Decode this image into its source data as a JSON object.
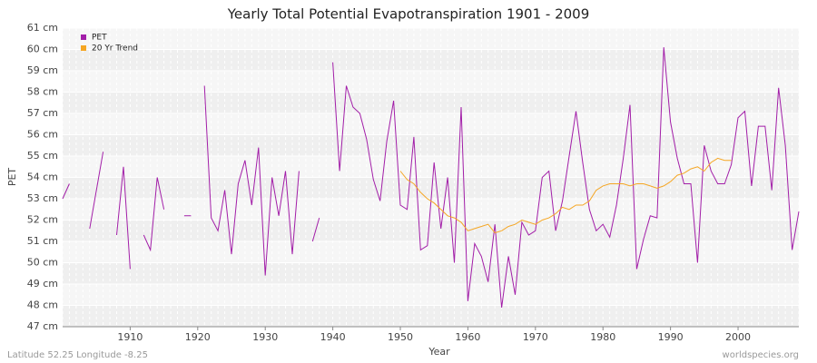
{
  "chart_data": {
    "type": "line",
    "title": "Yearly Total Potential Evapotranspiration 1901 - 2009",
    "x_label": "Year",
    "y_label": "PET",
    "footer_left": "Latitude 52.25 Longitude -8.25",
    "footer_right": "worldspecies.org",
    "legend": "upper left",
    "grid": true,
    "xlim": [
      1900,
      2009
    ],
    "xticks": [
      1910,
      1920,
      1930,
      1940,
      1950,
      1960,
      1970,
      1980,
      1990,
      2000
    ],
    "ylim": [
      47,
      61
    ],
    "yticks": [
      {
        "value": 47,
        "label": "47 cm"
      },
      {
        "value": 48,
        "label": "48 cm"
      },
      {
        "value": 49,
        "label": "49 cm"
      },
      {
        "value": 50,
        "label": "50 cm"
      },
      {
        "value": 51,
        "label": "51 cm"
      },
      {
        "value": 52,
        "label": "52 cm"
      },
      {
        "value": 53,
        "label": "53 cm"
      },
      {
        "value": 54,
        "label": "54 cm"
      },
      {
        "value": 55,
        "label": "55 cm"
      },
      {
        "value": 56,
        "label": "56 cm"
      },
      {
        "value": 57,
        "label": "57 cm"
      },
      {
        "value": 58,
        "label": "58 cm"
      },
      {
        "value": 59,
        "label": "59 cm"
      },
      {
        "value": 60,
        "label": "60 cm"
      },
      {
        "value": 61,
        "label": "61 cm"
      }
    ],
    "x": [
      1900,
      1901,
      1902,
      1903,
      1904,
      1905,
      1906,
      1907,
      1908,
      1909,
      1910,
      1911,
      1912,
      1913,
      1914,
      1915,
      1916,
      1917,
      1918,
      1919,
      1920,
      1921,
      1922,
      1923,
      1924,
      1925,
      1926,
      1927,
      1928,
      1929,
      1930,
      1931,
      1932,
      1933,
      1934,
      1935,
      1936,
      1937,
      1938,
      1939,
      1940,
      1941,
      1942,
      1943,
      1944,
      1945,
      1946,
      1947,
      1948,
      1949,
      1950,
      1951,
      1952,
      1953,
      1954,
      1955,
      1956,
      1957,
      1958,
      1959,
      1960,
      1961,
      1962,
      1963,
      1964,
      1965,
      1966,
      1967,
      1968,
      1969,
      1970,
      1971,
      1972,
      1973,
      1974,
      1975,
      1976,
      1977,
      1978,
      1979,
      1980,
      1981,
      1982,
      1983,
      1984,
      1985,
      1986,
      1987,
      1988,
      1989,
      1990,
      1991,
      1992,
      1993,
      1994,
      1995,
      1996,
      1997,
      1998,
      1999,
      2000,
      2001,
      2002,
      2003,
      2004,
      2005,
      2006,
      2007,
      2008,
      2009
    ],
    "series": [
      {
        "name": "PET",
        "color": "#a21ea8",
        "values": [
          53.0,
          53.7,
          null,
          null,
          51.6,
          53.4,
          55.2,
          null,
          51.3,
          54.5,
          49.7,
          null,
          51.3,
          50.6,
          54.0,
          52.5,
          null,
          null,
          52.2,
          52.2,
          null,
          58.3,
          52.1,
          51.5,
          53.4,
          50.4,
          53.7,
          54.8,
          52.7,
          55.4,
          49.4,
          54.0,
          52.2,
          54.3,
          50.4,
          54.3,
          null,
          51.0,
          52.1,
          null,
          59.4,
          54.3,
          58.3,
          57.3,
          57.0,
          55.8,
          53.9,
          52.9,
          55.7,
          57.6,
          52.7,
          52.5,
          55.9,
          50.6,
          50.8,
          54.7,
          51.6,
          54.0,
          50.0,
          57.3,
          48.2,
          50.9,
          50.3,
          49.1,
          51.8,
          47.9,
          50.3,
          48.5,
          51.9,
          51.3,
          51.5,
          54.0,
          54.3,
          51.5,
          52.9,
          55.0,
          57.1,
          54.7,
          52.5,
          51.5,
          51.8,
          51.2,
          52.7,
          54.9,
          57.4,
          49.7,
          51.1,
          52.2,
          52.1,
          60.1,
          56.6,
          54.9,
          53.7,
          53.7,
          50.0,
          55.5,
          54.3,
          53.7,
          53.7,
          54.6,
          56.8,
          57.1,
          53.6,
          56.4,
          56.4,
          53.4,
          58.2,
          55.5,
          50.6,
          52.4
        ]
      },
      {
        "name": "20 Yr Trend",
        "color": "#f5a623",
        "values": [
          null,
          null,
          null,
          null,
          null,
          null,
          null,
          null,
          null,
          null,
          null,
          null,
          null,
          null,
          null,
          null,
          null,
          null,
          null,
          null,
          null,
          null,
          null,
          null,
          null,
          null,
          null,
          null,
          null,
          null,
          null,
          null,
          null,
          null,
          null,
          null,
          null,
          null,
          null,
          null,
          null,
          null,
          null,
          null,
          null,
          null,
          null,
          null,
          null,
          null,
          54.3,
          53.9,
          53.7,
          53.3,
          53.0,
          52.8,
          52.5,
          52.2,
          52.1,
          51.9,
          51.5,
          51.6,
          51.7,
          51.8,
          51.4,
          51.5,
          51.7,
          51.8,
          52.0,
          51.9,
          51.8,
          52.0,
          52.1,
          52.3,
          52.6,
          52.5,
          52.7,
          52.7,
          52.9,
          53.4,
          53.6,
          53.7,
          53.7,
          53.7,
          53.6,
          53.7,
          53.7,
          53.6,
          53.5,
          53.6,
          53.8,
          54.1,
          54.2,
          54.4,
          54.5,
          54.3,
          54.7,
          54.9,
          54.8,
          54.8,
          null,
          null,
          null,
          null,
          null,
          null,
          null,
          null,
          null,
          null
        ]
      }
    ]
  }
}
